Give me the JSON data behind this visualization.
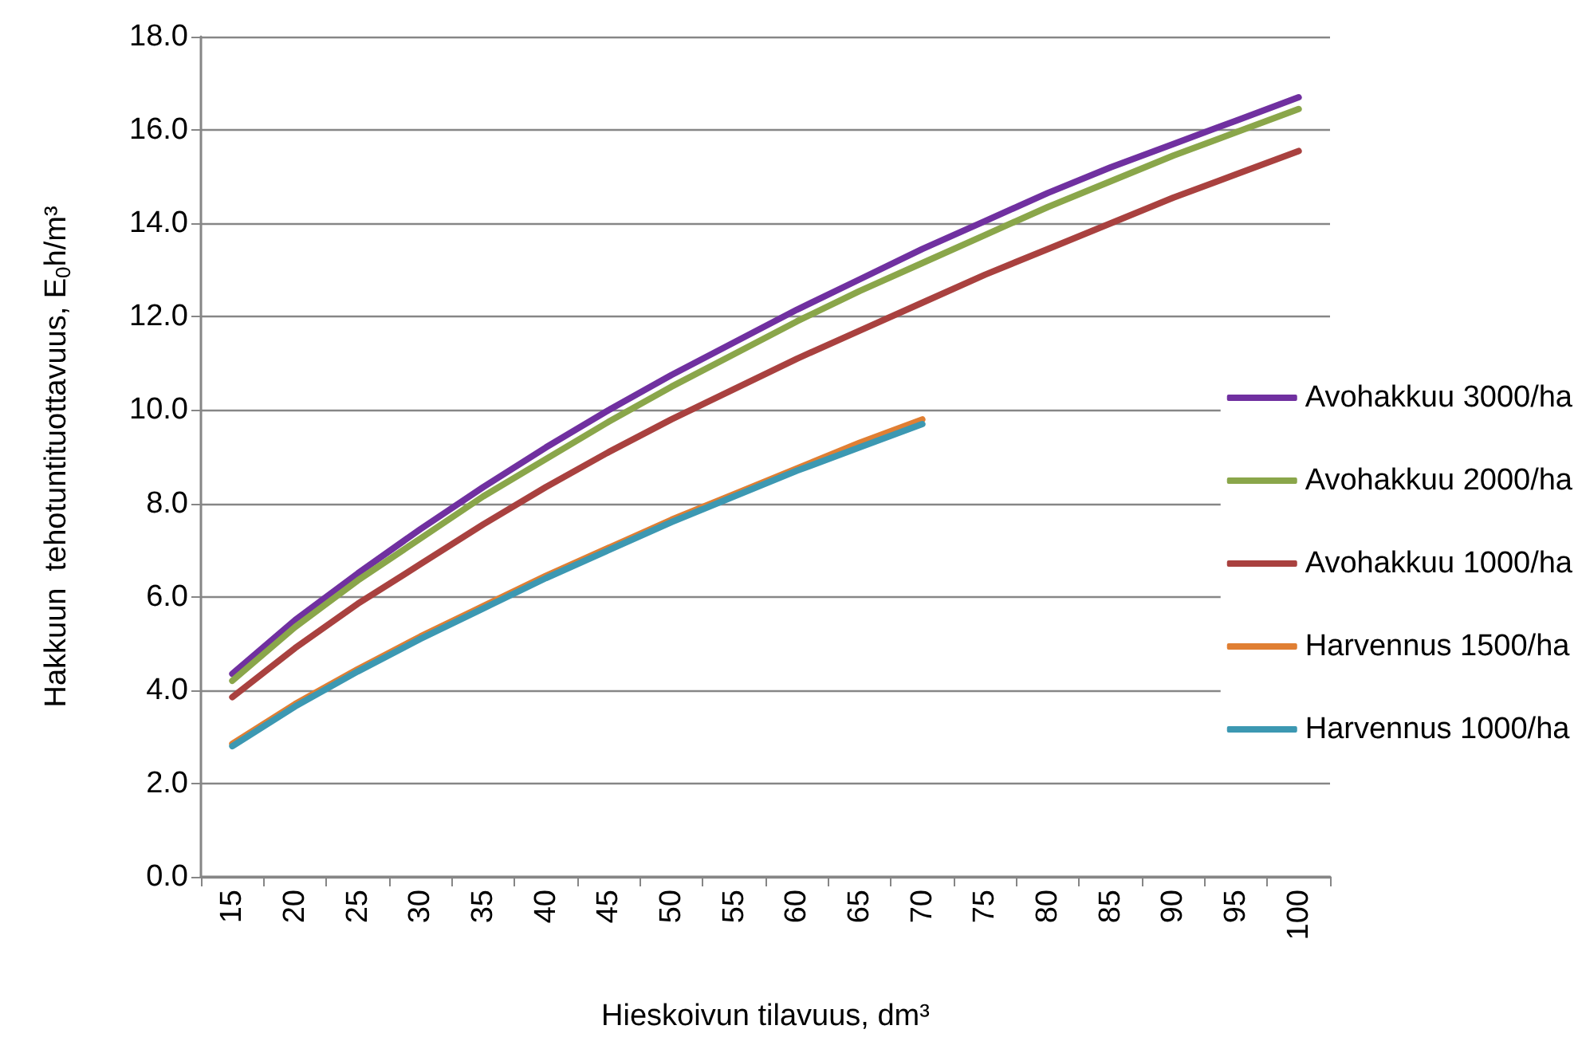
{
  "chart_data": {
    "type": "line",
    "xlabel": "Hieskoivun tilavuus, dm³",
    "ylabel": "Hakkuun  tehotuntituottavuus, E$_{0}$h/m³",
    "categories": [
      "15",
      "20",
      "25",
      "30",
      "35",
      "40",
      "45",
      "50",
      "55",
      "60",
      "65",
      "70",
      "75",
      "80",
      "85",
      "90",
      "95",
      "100"
    ],
    "series": [
      {
        "name": "Avohakkuu 3000/ha",
        "color": "#7030a0",
        "values": [
          4.35,
          5.5,
          6.5,
          7.45,
          8.35,
          9.2,
          10.0,
          10.75,
          11.45,
          12.15,
          12.8,
          13.45,
          14.05,
          14.65,
          15.2,
          15.7,
          16.2,
          16.7
        ]
      },
      {
        "name": "Avohakkuu 2000/ha",
        "color": "#8aa64a",
        "values": [
          4.2,
          5.35,
          6.35,
          7.25,
          8.15,
          8.95,
          9.75,
          10.5,
          11.2,
          11.9,
          12.55,
          13.15,
          13.75,
          14.35,
          14.9,
          15.45,
          15.95,
          16.45
        ]
      },
      {
        "name": "Avohakkuu 1000/ha",
        "color": "#a9413f",
        "values": [
          3.85,
          4.9,
          5.85,
          6.7,
          7.55,
          8.35,
          9.1,
          9.8,
          10.45,
          11.1,
          11.7,
          12.3,
          12.9,
          13.45,
          14.0,
          14.55,
          15.05,
          15.55
        ]
      },
      {
        "name": "Harvennus 1500/ha",
        "color": "#e07f33",
        "values": [
          2.85,
          3.7,
          4.45,
          5.15,
          5.8,
          6.45,
          7.05,
          7.65,
          8.2,
          8.75,
          9.3,
          9.8,
          null,
          null,
          null,
          null,
          null,
          null
        ]
      },
      {
        "name": "Harvennus 1000/ha",
        "color": "#3c98b2",
        "values": [
          2.8,
          3.65,
          4.4,
          5.1,
          5.75,
          6.4,
          7.0,
          7.6,
          8.15,
          8.7,
          9.2,
          9.7,
          null,
          null,
          null,
          null,
          null,
          null
        ]
      }
    ],
    "ylim": [
      0,
      18
    ],
    "yticks": [
      {
        "value": 0,
        "label": "0.0"
      },
      {
        "value": 2,
        "label": "2.0"
      },
      {
        "value": 4,
        "label": "4.0"
      },
      {
        "value": 6,
        "label": "6.0"
      },
      {
        "value": 8,
        "label": "8.0"
      },
      {
        "value": 10,
        "label": "10.0"
      },
      {
        "value": 12,
        "label": "12.0"
      },
      {
        "value": 14,
        "label": "14.0"
      },
      {
        "value": 16,
        "label": "16.0"
      },
      {
        "value": 18,
        "label": "18.0"
      }
    ],
    "grid": "y",
    "legend": "right",
    "marker": "none",
    "line_style": "solid"
  }
}
